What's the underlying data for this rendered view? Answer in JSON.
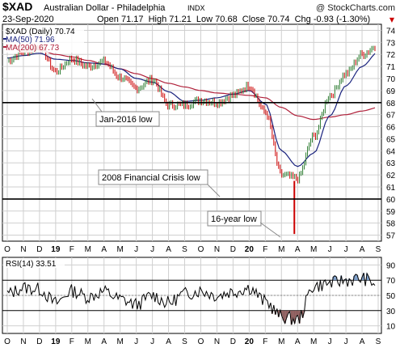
{
  "header": {
    "symbol": "$XAD",
    "name": "Australian Dollar - Philadelphia",
    "exchange": "INDX",
    "watermark": "@ StockCharts.com",
    "date": "23-Sep-2020",
    "quote": "Open 71.17  High 71.21  Low 70.68  Close 70.74  Chg -0.93 (-1.30%)",
    "quote_arrow": "▼"
  },
  "legend": {
    "price": "$XAD (Daily) 70.74",
    "ma50": "MA(50) 71.96",
    "ma200": "MA(200) 67.73"
  },
  "rsi_label": "RSI(14) 33.51",
  "colors": {
    "price_up": "#2e7d32",
    "price_down": "#cc0000",
    "ma50": "#1a237e",
    "ma200": "#b0203a",
    "grid": "#cfcfcf",
    "rsi_line": "#000000",
    "rsi_fill_high": "#7a9cc8",
    "rsi_fill_low": "#8b5a5a"
  },
  "chart_data": [
    {
      "type": "line",
      "title": "$XAD Australian Dollar - Philadelphia INDX",
      "x_ticks": [
        "O",
        "N",
        "D",
        "19",
        "F",
        "M",
        "A",
        "M",
        "J",
        "J",
        "A",
        "S",
        "O",
        "N",
        "D",
        "20",
        "F",
        "M",
        "A",
        "M",
        "J",
        "J",
        "A",
        "S"
      ],
      "ylim": [
        56.5,
        74.5
      ],
      "y_ticks": [
        57,
        58,
        59,
        60,
        61,
        62,
        63,
        64,
        65,
        66,
        67,
        68,
        69,
        70,
        71,
        72,
        73,
        74
      ],
      "grid": true,
      "series": [
        {
          "name": "$XAD (Daily) 70.74",
          "x": [
            "O",
            "N",
            "D",
            "19",
            "F",
            "M",
            "A",
            "M",
            "J",
            "J",
            "A",
            "S",
            "O",
            "N",
            "D",
            "20",
            "F",
            "M",
            "A",
            "M",
            "J",
            "J",
            "A",
            "S",
            "S"
          ],
          "values": [
            71.5,
            72.2,
            72.6,
            70.6,
            71.6,
            71.0,
            71.4,
            70.1,
            69.2,
            69.9,
            67.8,
            67.8,
            68.2,
            68.0,
            68.6,
            69.4,
            67.2,
            62.0,
            61.7,
            65.2,
            68.6,
            70.4,
            72.0,
            72.8,
            70.74
          ]
        },
        {
          "name": "MA(50) 71.96",
          "x": [
            "O",
            "N",
            "D",
            "19",
            "F",
            "M",
            "A",
            "M",
            "J",
            "J",
            "A",
            "S",
            "O",
            "N",
            "D",
            "20",
            "F",
            "M",
            "A",
            "M",
            "J",
            "J",
            "A",
            "S",
            "S"
          ],
          "values": [
            71.7,
            71.9,
            72.1,
            71.6,
            71.5,
            71.3,
            71.2,
            70.8,
            70.0,
            69.7,
            68.9,
            68.1,
            68.2,
            68.4,
            68.7,
            69.0,
            67.9,
            64.0,
            62.7,
            63.8,
            66.9,
            69.4,
            71.0,
            72.2,
            71.96
          ]
        },
        {
          "name": "MA(200) 67.73",
          "x": [
            "O",
            "N",
            "D",
            "19",
            "F",
            "M",
            "A",
            "M",
            "J",
            "J",
            "A",
            "S",
            "O",
            "N",
            "D",
            "20",
            "F",
            "M",
            "A",
            "M",
            "J",
            "J",
            "A",
            "S",
            "S"
          ],
          "values": [
            72.8,
            72.6,
            72.4,
            72.0,
            71.8,
            71.5,
            71.2,
            70.8,
            70.4,
            70.0,
            69.6,
            69.3,
            69.0,
            68.8,
            68.7,
            68.6,
            68.4,
            67.6,
            66.9,
            66.6,
            66.8,
            67.0,
            67.3,
            67.6,
            67.73
          ]
        }
      ],
      "reference_lines": [
        {
          "value": 68,
          "label": "Jan-2016 low"
        },
        {
          "value": 60,
          "label": "2008 Financial Crisis low"
        }
      ],
      "annotations": [
        {
          "text": "16-year low",
          "points_to": 57.2
        }
      ]
    },
    {
      "type": "line",
      "title": "RSI(14) 33.51",
      "x_ticks": [
        "O",
        "N",
        "D",
        "19",
        "F",
        "M",
        "A",
        "M",
        "J",
        "J",
        "A",
        "S",
        "O",
        "N",
        "D",
        "20",
        "F",
        "M",
        "A",
        "M",
        "J",
        "J",
        "A",
        "S"
      ],
      "ylim": [
        0,
        100
      ],
      "y_ticks": [
        10,
        30,
        50,
        70,
        90
      ],
      "overbought": 70,
      "oversold": 30,
      "series": [
        {
          "name": "RSI(14) 33.51",
          "x": [
            "O",
            "N",
            "D",
            "19",
            "F",
            "M",
            "A",
            "M",
            "J",
            "J",
            "A",
            "S",
            "O",
            "N",
            "D",
            "20",
            "F",
            "M",
            "A",
            "M",
            "J",
            "J",
            "A",
            "S",
            "S"
          ],
          "values": [
            52,
            60,
            58,
            40,
            56,
            48,
            55,
            45,
            38,
            50,
            40,
            52,
            56,
            50,
            55,
            60,
            42,
            22,
            18,
            62,
            66,
            70,
            72,
            65,
            33.51
          ]
        }
      ]
    }
  ]
}
